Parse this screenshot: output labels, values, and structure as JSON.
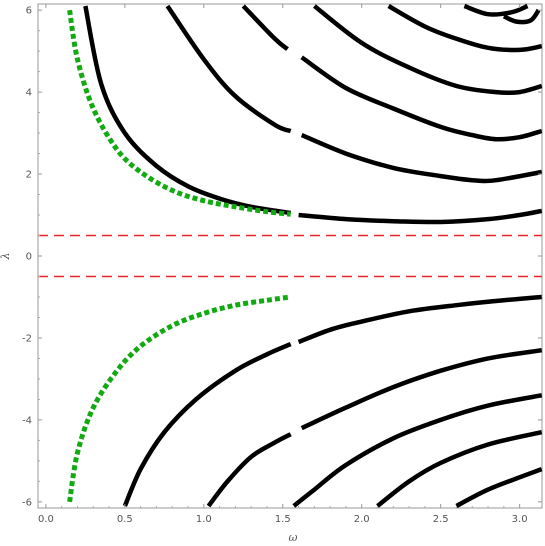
{
  "chart_data": {
    "type": "line",
    "title": "",
    "xlabel": "ω",
    "ylabel": "λ",
    "xlim": [
      -0.05,
      3.1416
    ],
    "ylim": [
      -6.15,
      6.15
    ],
    "grid": false,
    "legend": "none",
    "xticks": [
      0.0,
      0.5,
      1.0,
      1.5,
      2.0,
      2.5,
      3.0
    ],
    "xtick_labels": [
      "0.0",
      "0.5",
      "1.0",
      "1.5",
      "2.0",
      "2.5",
      "3.0"
    ],
    "yticks": [
      -6,
      -4,
      -2,
      0,
      2,
      4,
      6
    ],
    "ytick_labels": [
      "-6",
      "-4",
      "-2",
      "0",
      "2",
      "4",
      "6"
    ],
    "colors": {
      "curves": "#000000",
      "dotted": "#11aa11",
      "dashed": "#ee2222",
      "frame": "#999999"
    },
    "upper_curves": [
      {
        "points": [
          [
            0.25,
            6.1
          ],
          [
            0.35,
            4.2
          ],
          [
            0.5,
            3.0
          ],
          [
            0.7,
            2.2
          ],
          [
            0.9,
            1.7
          ],
          [
            1.1,
            1.4
          ],
          [
            1.3,
            1.2
          ],
          [
            1.55,
            1.05
          ]
        ]
      },
      {
        "points": [
          [
            1.6,
            1.0
          ],
          [
            1.9,
            0.9
          ],
          [
            2.2,
            0.85
          ],
          [
            2.5,
            0.83
          ],
          [
            2.8,
            0.9
          ],
          [
            3.0,
            1.0
          ],
          [
            3.14,
            1.1
          ]
        ]
      },
      {
        "points": [
          [
            0.77,
            6.1
          ],
          [
            1.0,
            4.8
          ],
          [
            1.2,
            3.9
          ],
          [
            1.45,
            3.2
          ],
          [
            1.55,
            3.05
          ]
        ]
      },
      {
        "points": [
          [
            1.62,
            2.95
          ],
          [
            1.9,
            2.5
          ],
          [
            2.2,
            2.15
          ],
          [
            2.5,
            1.95
          ],
          [
            2.7,
            1.85
          ],
          [
            2.85,
            1.85
          ],
          [
            3.14,
            2.05
          ]
        ]
      },
      {
        "points": [
          [
            1.25,
            6.1
          ],
          [
            1.45,
            5.3
          ],
          [
            1.53,
            5.05
          ]
        ]
      },
      {
        "points": [
          [
            1.62,
            4.85
          ],
          [
            1.9,
            4.1
          ],
          [
            2.2,
            3.6
          ],
          [
            2.5,
            3.15
          ],
          [
            2.7,
            2.95
          ],
          [
            2.85,
            2.85
          ],
          [
            3.0,
            2.9
          ],
          [
            3.14,
            3.05
          ]
        ]
      },
      {
        "points": [
          [
            1.7,
            6.1
          ],
          [
            2.0,
            5.2
          ],
          [
            2.3,
            4.6
          ],
          [
            2.6,
            4.15
          ],
          [
            2.85,
            4.0
          ],
          [
            3.0,
            4.0
          ],
          [
            3.14,
            4.15
          ]
        ]
      },
      {
        "points": [
          [
            2.17,
            6.1
          ],
          [
            2.4,
            5.6
          ],
          [
            2.6,
            5.3
          ],
          [
            2.8,
            5.08
          ],
          [
            3.0,
            5.03
          ],
          [
            3.14,
            5.12
          ]
        ]
      },
      {
        "points": [
          [
            2.65,
            6.1
          ],
          [
            2.8,
            5.9
          ],
          [
            2.95,
            5.95
          ],
          [
            3.05,
            6.1
          ]
        ]
      },
      {
        "points": [
          [
            2.9,
            5.85
          ],
          [
            2.98,
            5.72
          ],
          [
            3.07,
            5.75
          ],
          [
            3.12,
            6.0
          ]
        ]
      }
    ],
    "lower_curves": [
      {
        "points": [
          [
            0.5,
            -6.1
          ],
          [
            0.6,
            -5.2
          ],
          [
            0.75,
            -4.3
          ],
          [
            0.95,
            -3.5
          ],
          [
            1.2,
            -2.8
          ],
          [
            1.4,
            -2.4
          ],
          [
            1.55,
            -2.15
          ]
        ]
      },
      {
        "points": [
          [
            1.6,
            -2.1
          ],
          [
            1.8,
            -1.8
          ],
          [
            2.0,
            -1.6
          ],
          [
            2.3,
            -1.35
          ],
          [
            2.6,
            -1.2
          ],
          [
            2.9,
            -1.08
          ],
          [
            3.14,
            -1.0
          ]
        ]
      },
      {
        "points": [
          [
            1.03,
            -6.1
          ],
          [
            1.15,
            -5.5
          ],
          [
            1.3,
            -4.9
          ],
          [
            1.45,
            -4.55
          ],
          [
            1.55,
            -4.35
          ]
        ]
      },
      {
        "points": [
          [
            1.62,
            -4.2
          ],
          [
            1.9,
            -3.7
          ],
          [
            2.2,
            -3.2
          ],
          [
            2.5,
            -2.8
          ],
          [
            2.8,
            -2.5
          ],
          [
            3.14,
            -2.3
          ]
        ]
      },
      {
        "points": [
          [
            1.57,
            -6.1
          ],
          [
            1.7,
            -5.7
          ],
          [
            1.9,
            -5.1
          ],
          [
            2.2,
            -4.45
          ],
          [
            2.5,
            -4.0
          ],
          [
            2.8,
            -3.65
          ],
          [
            3.14,
            -3.4
          ]
        ]
      },
      {
        "points": [
          [
            2.1,
            -6.1
          ],
          [
            2.3,
            -5.5
          ],
          [
            2.5,
            -5.05
          ],
          [
            2.8,
            -4.6
          ],
          [
            3.14,
            -4.3
          ]
        ]
      },
      {
        "points": [
          [
            2.6,
            -6.1
          ],
          [
            2.8,
            -5.7
          ],
          [
            3.0,
            -5.4
          ],
          [
            3.14,
            -5.2
          ]
        ]
      }
    ],
    "dotted_curves": [
      {
        "points": [
          [
            0.15,
            6.0
          ],
          [
            0.2,
            4.8
          ],
          [
            0.3,
            3.6
          ],
          [
            0.45,
            2.6
          ],
          [
            0.6,
            2.05
          ],
          [
            0.8,
            1.6
          ],
          [
            1.0,
            1.35
          ],
          [
            1.2,
            1.2
          ],
          [
            1.4,
            1.08
          ],
          [
            1.55,
            1.02
          ]
        ]
      },
      {
        "points": [
          [
            0.15,
            -6.0
          ],
          [
            0.2,
            -4.8
          ],
          [
            0.3,
            -3.7
          ],
          [
            0.45,
            -2.8
          ],
          [
            0.6,
            -2.2
          ],
          [
            0.8,
            -1.7
          ],
          [
            1.0,
            -1.4
          ],
          [
            1.2,
            -1.2
          ],
          [
            1.4,
            -1.08
          ],
          [
            1.55,
            -1.0
          ]
        ]
      }
    ],
    "dashed_lines": [
      {
        "y": 0.5
      },
      {
        "y": -0.5
      }
    ]
  }
}
